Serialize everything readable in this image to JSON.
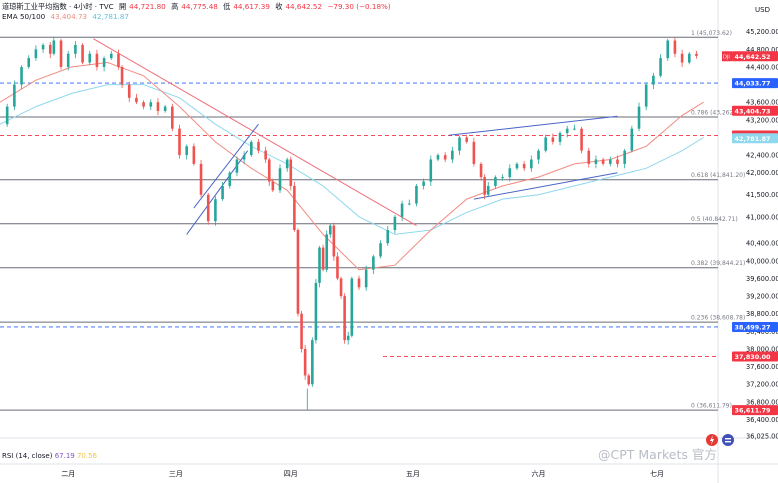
{
  "header": {
    "symbol_line": "道琼斯工业平均指数 · 4小时 · TVC",
    "open_label": "開",
    "open": "44,721.80",
    "high_label": "高",
    "high": "44,775.48",
    "low_label": "低",
    "low": "44,617.39",
    "close_label": "收",
    "close": "44,642.52",
    "change": "−79.30 (−0.18%)",
    "ema_label": "EMA 50/100",
    "ema50": "43,404.73",
    "ema100": "42,781.87"
  },
  "currency": "USD",
  "rsi_panel": {
    "label": "RSI (14, close)",
    "rsi": "67.19",
    "ma": "70.56"
  },
  "watermark": "@CPT Markets 官方",
  "colors": {
    "up": "#26a69a",
    "down": "#ef5350",
    "ema50": "#f28b82",
    "ema100": "#8fd8ee",
    "downtrend": "#f06a78",
    "channel": "#4a64c8",
    "fib": "#6a6d78",
    "level_blue": "#2962ff",
    "level_red": "#f23645"
  },
  "chart_data": {
    "type": "candlestick",
    "title": "道琼斯工业平均指数 · 4小时 · TVC",
    "ylim": [
      36025,
      45420
    ],
    "y_ticks": [
      45200,
      44800,
      44400,
      44000,
      43600,
      43200,
      42800,
      42400,
      42000,
      41500,
      41000,
      40400,
      40000,
      39600,
      39200,
      38800,
      38400,
      38000,
      37600,
      37200,
      36800,
      36400,
      36025
    ],
    "x_months": [
      {
        "label": "二月",
        "pos": 0.095
      },
      {
        "label": "三月",
        "pos": 0.245
      },
      {
        "label": "四月",
        "pos": 0.405
      },
      {
        "label": "五月",
        "pos": 0.575
      },
      {
        "label": "六月",
        "pos": 0.75
      },
      {
        "label": "七月",
        "pos": 0.915
      }
    ],
    "fib_levels": [
      {
        "label": "1 (45,073.62)",
        "value": 45073.62
      },
      {
        "label": "0.786 (43,262.79)",
        "value": 43262.79
      },
      {
        "label": "0.618 (41,841.20)",
        "value": 41841.2
      },
      {
        "label": "0.5 (40,842.71)",
        "value": 40842.71
      },
      {
        "label": "0.382 (39,844.21)",
        "value": 39844.21
      },
      {
        "label": "0.236 (38,608.78)",
        "value": 38608.78
      },
      {
        "label": "0 (36,611.79)",
        "value": 36611.79
      }
    ],
    "price_tags": [
      {
        "value": 44642.52,
        "text": "44,642.52",
        "color": "#f23645",
        "tag": "DJI"
      },
      {
        "value": 44033.77,
        "text": "44,033.77",
        "color": "#2962ff"
      },
      {
        "value": 43404.73,
        "text": "43,404.73",
        "color": "#f23645"
      },
      {
        "value": 42842.98,
        "text": "42,842.98",
        "color": "#f23645"
      },
      {
        "value": 42781.87,
        "text": "42,781.87",
        "color": "#8fd8ee"
      },
      {
        "value": 38499.27,
        "text": "38,499.27",
        "color": "#2962ff"
      },
      {
        "value": 37830.0,
        "text": "37,830.00",
        "color": "#f23645"
      },
      {
        "value": 36611.79,
        "text": "36,611.79",
        "color": "#f23645"
      }
    ],
    "horizontal_levels": [
      {
        "value": 44033.77,
        "color": "#2962ff",
        "style": "dashed"
      },
      {
        "value": 42842.98,
        "color": "#f23645",
        "style": "dashed"
      },
      {
        "value": 38499.27,
        "color": "#2962ff",
        "style": "dashed"
      },
      {
        "value": 37830.0,
        "color": "#f23645",
        "style": "dashed"
      }
    ],
    "price_path": [
      [
        0.0,
        43100
      ],
      [
        0.01,
        43500
      ],
      [
        0.02,
        44000
      ],
      [
        0.03,
        44400
      ],
      [
        0.04,
        44600
      ],
      [
        0.05,
        44800
      ],
      [
        0.06,
        44900
      ],
      [
        0.07,
        44700
      ],
      [
        0.075,
        45000
      ],
      [
        0.085,
        44400
      ],
      [
        0.095,
        44700
      ],
      [
        0.105,
        44900
      ],
      [
        0.115,
        44500
      ],
      [
        0.125,
        44700
      ],
      [
        0.135,
        44400
      ],
      [
        0.145,
        44600
      ],
      [
        0.155,
        44700
      ],
      [
        0.165,
        44400
      ],
      [
        0.17,
        44000
      ],
      [
        0.18,
        43700
      ],
      [
        0.19,
        43600
      ],
      [
        0.2,
        43500
      ],
      [
        0.21,
        43600
      ],
      [
        0.22,
        43400
      ],
      [
        0.23,
        43500
      ],
      [
        0.24,
        43000
      ],
      [
        0.25,
        42400
      ],
      [
        0.26,
        42600
      ],
      [
        0.27,
        42200
      ],
      [
        0.28,
        41500
      ],
      [
        0.29,
        40900
      ],
      [
        0.3,
        41400
      ],
      [
        0.31,
        41700
      ],
      [
        0.32,
        42000
      ],
      [
        0.33,
        42300
      ],
      [
        0.34,
        42400
      ],
      [
        0.35,
        42700
      ],
      [
        0.36,
        42500
      ],
      [
        0.37,
        42300
      ],
      [
        0.375,
        41800
      ],
      [
        0.38,
        41600
      ],
      [
        0.39,
        42100
      ],
      [
        0.4,
        42300
      ],
      [
        0.405,
        41700
      ],
      [
        0.41,
        40700
      ],
      [
        0.415,
        38800
      ],
      [
        0.42,
        38000
      ],
      [
        0.425,
        37400
      ],
      [
        0.43,
        37200
      ],
      [
        0.435,
        38200
      ],
      [
        0.44,
        39500
      ],
      [
        0.445,
        40300
      ],
      [
        0.45,
        39800
      ],
      [
        0.455,
        40600
      ],
      [
        0.46,
        40800
      ],
      [
        0.465,
        40100
      ],
      [
        0.47,
        39600
      ],
      [
        0.475,
        39200
      ],
      [
        0.48,
        38200
      ],
      [
        0.485,
        38300
      ],
      [
        0.49,
        39600
      ],
      [
        0.5,
        39400
      ],
      [
        0.51,
        39800
      ],
      [
        0.52,
        40100
      ],
      [
        0.53,
        40400
      ],
      [
        0.54,
        40700
      ],
      [
        0.55,
        41000
      ],
      [
        0.56,
        41300
      ],
      [
        0.57,
        41300
      ],
      [
        0.58,
        41700
      ],
      [
        0.59,
        41800
      ],
      [
        0.6,
        42300
      ],
      [
        0.61,
        42400
      ],
      [
        0.62,
        42300
      ],
      [
        0.63,
        42500
      ],
      [
        0.64,
        42800
      ],
      [
        0.65,
        42700
      ],
      [
        0.66,
        42200
      ],
      [
        0.67,
        41900
      ],
      [
        0.675,
        41500
      ],
      [
        0.68,
        41700
      ],
      [
        0.69,
        41900
      ],
      [
        0.7,
        41900
      ],
      [
        0.71,
        42100
      ],
      [
        0.72,
        42200
      ],
      [
        0.73,
        42100
      ],
      [
        0.74,
        42300
      ],
      [
        0.75,
        42500
      ],
      [
        0.76,
        42800
      ],
      [
        0.77,
        42700
      ],
      [
        0.78,
        42900
      ],
      [
        0.79,
        43000
      ],
      [
        0.8,
        43000
      ],
      [
        0.81,
        42500
      ],
      [
        0.82,
        42200
      ],
      [
        0.83,
        42300
      ],
      [
        0.84,
        42200
      ],
      [
        0.85,
        42300
      ],
      [
        0.86,
        42200
      ],
      [
        0.87,
        42500
      ],
      [
        0.88,
        43000
      ],
      [
        0.89,
        43500
      ],
      [
        0.9,
        44000
      ],
      [
        0.91,
        44200
      ],
      [
        0.92,
        44600
      ],
      [
        0.93,
        45000
      ],
      [
        0.94,
        44700
      ],
      [
        0.95,
        44500
      ],
      [
        0.96,
        44700
      ],
      [
        0.97,
        44650
      ]
    ],
    "ema50": [
      [
        0.0,
        43600
      ],
      [
        0.05,
        44100
      ],
      [
        0.1,
        44400
      ],
      [
        0.15,
        44500
      ],
      [
        0.2,
        44200
      ],
      [
        0.25,
        43500
      ],
      [
        0.3,
        42700
      ],
      [
        0.35,
        42100
      ],
      [
        0.4,
        41600
      ],
      [
        0.45,
        40600
      ],
      [
        0.5,
        39800
      ],
      [
        0.55,
        39900
      ],
      [
        0.6,
        40700
      ],
      [
        0.65,
        41400
      ],
      [
        0.7,
        41700
      ],
      [
        0.75,
        41900
      ],
      [
        0.8,
        42200
      ],
      [
        0.85,
        42300
      ],
      [
        0.9,
        42600
      ],
      [
        0.95,
        43300
      ],
      [
        0.98,
        43600
      ]
    ],
    "ema100": [
      [
        0.0,
        43100
      ],
      [
        0.05,
        43500
      ],
      [
        0.1,
        43800
      ],
      [
        0.15,
        44000
      ],
      [
        0.2,
        44000
      ],
      [
        0.25,
        43700
      ],
      [
        0.3,
        43100
      ],
      [
        0.35,
        42600
      ],
      [
        0.4,
        42200
      ],
      [
        0.45,
        41700
      ],
      [
        0.5,
        41000
      ],
      [
        0.55,
        40600
      ],
      [
        0.6,
        40700
      ],
      [
        0.65,
        41100
      ],
      [
        0.7,
        41400
      ],
      [
        0.75,
        41500
      ],
      [
        0.8,
        41700
      ],
      [
        0.85,
        41900
      ],
      [
        0.9,
        42100
      ],
      [
        0.95,
        42500
      ],
      [
        0.98,
        42800
      ]
    ],
    "downtrend_line": [
      [
        0.13,
        45040
      ],
      [
        0.58,
        40800
      ]
    ],
    "channel_march": [
      [
        [
          0.26,
          40600
        ],
        [
          0.345,
          42500
        ]
      ],
      [
        [
          0.27,
          41200
        ],
        [
          0.36,
          43100
        ]
      ]
    ],
    "channel_may_jun": [
      [
        [
          0.66,
          41400
        ],
        [
          0.86,
          42000
        ]
      ],
      [
        [
          0.625,
          42850
        ],
        [
          0.86,
          43280
        ]
      ]
    ]
  }
}
